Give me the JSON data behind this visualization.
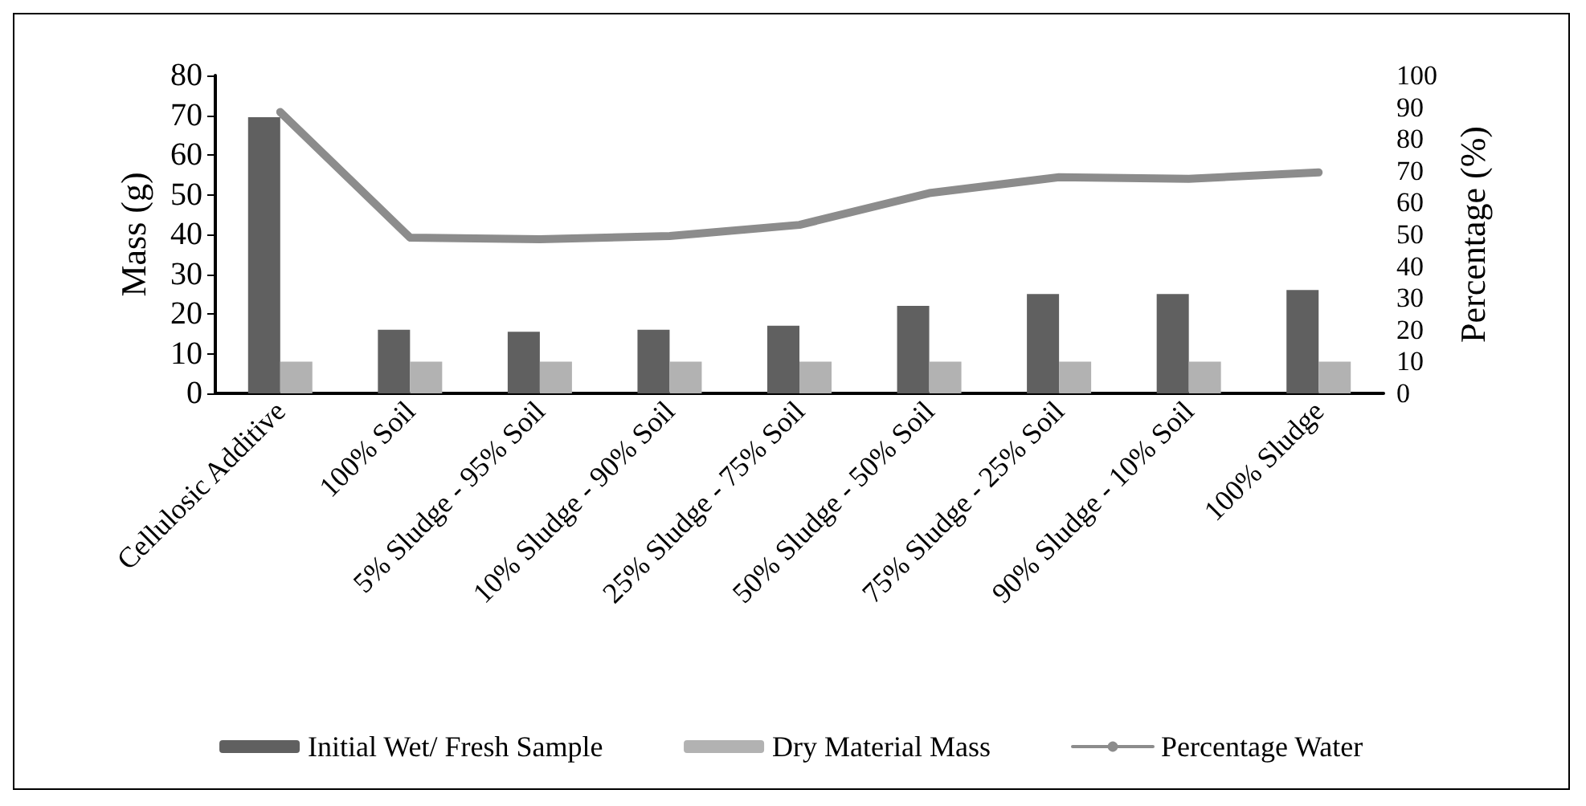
{
  "chart_data": {
    "type": "bar",
    "ylabel": "Mass (g)",
    "y2label": "Percentage (%)",
    "categories": [
      "Cellulosic Additive",
      "100% Soil",
      "5% Sludge - 95% Soil",
      "10% Sludge - 90% Soil",
      "25% Sludge - 75% Soil",
      "50% Sludge - 50% Soil",
      "75% Sludge - 25% Soil",
      "90% Sludge - 10% Soil",
      "100% Sludge"
    ],
    "series": [
      {
        "name": "Initial Wet/ Fresh Sample",
        "color": "#606060",
        "values": [
          69.5,
          16,
          15.5,
          16,
          17,
          22,
          25,
          25,
          26
        ]
      },
      {
        "name": "Dry Material Mass",
        "color": "#b2b2b2",
        "values": [
          8,
          8,
          8,
          8,
          8,
          8,
          8,
          8,
          8
        ]
      },
      {
        "name": "Percentage Water",
        "type": "line",
        "axis": "y2",
        "color": "#8c8c8c",
        "values": [
          88.5,
          49,
          48.5,
          49.5,
          53,
          63,
          68,
          67.5,
          69.5
        ]
      }
    ],
    "ylim": [
      0,
      80
    ],
    "yticks": [
      0,
      10,
      20,
      30,
      40,
      50,
      60,
      70,
      80
    ],
    "y2lim": [
      0,
      100
    ],
    "y2ticks": [
      0,
      10,
      20,
      30,
      40,
      50,
      60,
      70,
      80,
      90,
      100
    ],
    "grid": false,
    "legend": "bottom",
    "marker": "none"
  }
}
